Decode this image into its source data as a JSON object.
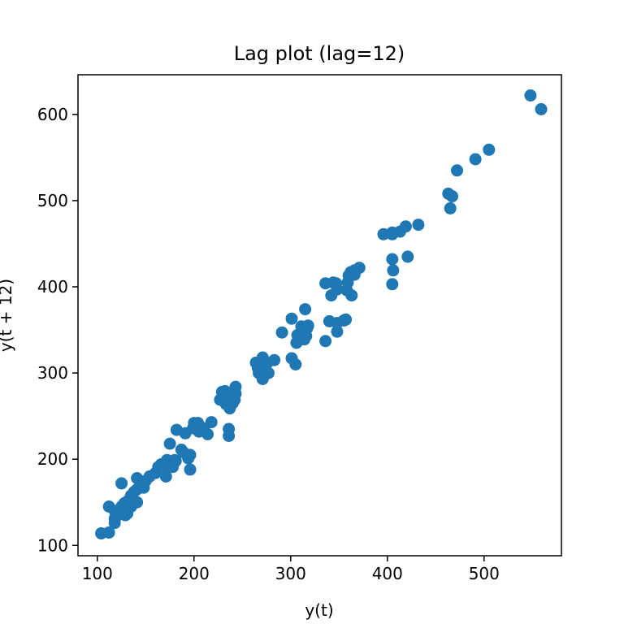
{
  "chart_data": {
    "type": "scatter",
    "title": "Lag plot (lag=12)",
    "xlabel": "y(t)",
    "ylabel": "y(t + 12)",
    "xlim": [
      80,
      580
    ],
    "ylim": [
      88,
      646
    ],
    "xticks": [
      100,
      200,
      300,
      400,
      500
    ],
    "yticks": [
      100,
      200,
      300,
      400,
      500,
      600
    ],
    "marker_color": "#1f77b4",
    "grid": false,
    "points": [
      [
        104,
        114
      ],
      [
        112,
        115
      ],
      [
        118,
        126
      ],
      [
        118,
        131
      ],
      [
        119,
        133
      ],
      [
        121,
        135
      ],
      [
        123,
        141
      ],
      [
        125,
        143
      ],
      [
        129,
        135
      ],
      [
        131,
        137
      ],
      [
        135,
        145
      ],
      [
        135,
        148
      ],
      [
        141,
        150
      ],
      [
        125,
        172
      ],
      [
        112,
        145
      ],
      [
        118,
        140
      ],
      [
        124,
        141
      ],
      [
        125,
        145
      ],
      [
        128,
        149
      ],
      [
        132,
        152
      ],
      [
        135,
        158
      ],
      [
        138,
        162
      ],
      [
        141,
        165
      ],
      [
        148,
        167
      ],
      [
        148,
        172
      ],
      [
        150,
        175
      ],
      [
        154,
        180
      ],
      [
        141,
        178
      ],
      [
        160,
        184
      ],
      [
        163,
        191
      ],
      [
        166,
        194
      ],
      [
        170,
        193
      ],
      [
        171,
        180
      ],
      [
        172,
        199
      ],
      [
        172,
        190
      ],
      [
        178,
        191
      ],
      [
        180,
        199
      ],
      [
        181,
        198
      ],
      [
        187,
        211
      ],
      [
        189,
        208
      ],
      [
        194,
        201
      ],
      [
        196,
        205
      ],
      [
        196,
        188
      ],
      [
        175,
        218
      ],
      [
        182,
        234
      ],
      [
        191,
        230
      ],
      [
        199,
        236
      ],
      [
        200,
        242
      ],
      [
        204,
        242
      ],
      [
        205,
        232
      ],
      [
        210,
        236
      ],
      [
        214,
        229
      ],
      [
        218,
        243
      ],
      [
        227,
        269
      ],
      [
        229,
        271
      ],
      [
        229,
        278
      ],
      [
        232,
        279
      ],
      [
        233,
        264
      ],
      [
        234,
        268
      ],
      [
        235,
        270
      ],
      [
        236,
        235
      ],
      [
        236,
        227
      ],
      [
        237,
        259
      ],
      [
        240,
        265
      ],
      [
        242,
        269
      ],
      [
        243,
        276
      ],
      [
        243,
        284
      ],
      [
        264,
        312
      ],
      [
        266,
        306
      ],
      [
        267,
        300
      ],
      [
        269,
        313
      ],
      [
        271,
        318
      ],
      [
        271,
        293
      ],
      [
        274,
        301
      ],
      [
        276,
        312
      ],
      [
        277,
        300
      ],
      [
        283,
        315
      ],
      [
        291,
        347
      ],
      [
        301,
        317
      ],
      [
        301,
        363
      ],
      [
        305,
        310
      ],
      [
        306,
        335
      ],
      [
        307,
        344
      ],
      [
        311,
        354
      ],
      [
        313,
        347
      ],
      [
        314,
        339
      ],
      [
        315,
        374
      ],
      [
        316,
        343
      ],
      [
        317,
        352
      ],
      [
        318,
        355
      ],
      [
        336,
        404
      ],
      [
        336,
        337
      ],
      [
        340,
        360
      ],
      [
        342,
        390
      ],
      [
        344,
        405
      ],
      [
        347,
        404
      ],
      [
        348,
        397
      ],
      [
        348,
        348
      ],
      [
        348,
        358
      ],
      [
        355,
        361
      ],
      [
        357,
        362
      ],
      [
        358,
        396
      ],
      [
        359,
        405
      ],
      [
        360,
        413
      ],
      [
        362,
        417
      ],
      [
        363,
        390
      ],
      [
        366,
        414
      ],
      [
        366,
        419
      ],
      [
        371,
        422
      ],
      [
        396,
        461
      ],
      [
        405,
        463
      ],
      [
        405,
        461
      ],
      [
        405,
        432
      ],
      [
        405,
        403
      ],
      [
        406,
        419
      ],
      [
        413,
        464
      ],
      [
        419,
        470
      ],
      [
        421,
        435
      ],
      [
        432,
        472
      ],
      [
        463,
        508
      ],
      [
        465,
        491
      ],
      [
        467,
        505
      ],
      [
        472,
        535
      ],
      [
        491,
        548
      ],
      [
        505,
        559
      ],
      [
        548,
        622
      ],
      [
        559,
        606
      ]
    ]
  }
}
